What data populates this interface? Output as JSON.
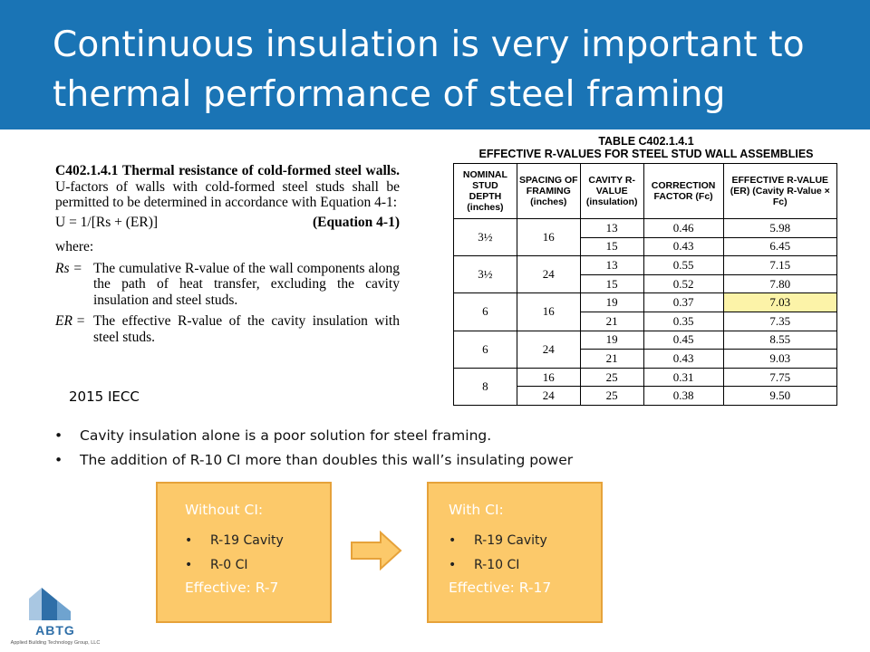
{
  "title": "Continuous insulation is very important to thermal performance of steel framing",
  "code_section": {
    "number": "C402.1.4.1",
    "heading": "Thermal resistance of cold-formed steel walls.",
    "intro": "U-factors of walls with cold-formed steel studs shall be permitted to be determined in accordance with Equation 4-1:",
    "equation": "U = 1/[Rs + (ER)]",
    "equation_label": "(Equation 4-1)",
    "where_label": "where:",
    "definitions": [
      {
        "symbol": "Rs =",
        "text": "The cumulative R-value of the wall components along the path of heat transfer, excluding the cavity insulation and steel studs."
      },
      {
        "symbol": "ER =",
        "text": "The effective R-value of the cavity insulation with steel studs."
      }
    ]
  },
  "source_label": "2015 IECC",
  "table": {
    "title_line1": "TABLE C402.1.4.1",
    "title_line2": "EFFECTIVE R-VALUES FOR STEEL STUD WALL ASSEMBLIES",
    "headers": [
      "NOMINAL STUD DEPTH (inches)",
      "SPACING OF FRAMING (inches)",
      "CAVITY R-VALUE (insulation)",
      "CORRECTION FACTOR (Fc)",
      "EFFECTIVE R-VALUE (ER) (Cavity R-Value × Fc)"
    ],
    "groups": [
      {
        "depth": "3½",
        "spacing": "16",
        "rows": [
          [
            "13",
            "0.46",
            "5.98"
          ],
          [
            "15",
            "0.43",
            "6.45"
          ]
        ]
      },
      {
        "depth": "3½",
        "spacing": "24",
        "rows": [
          [
            "13",
            "0.55",
            "7.15"
          ],
          [
            "15",
            "0.52",
            "7.80"
          ]
        ]
      },
      {
        "depth": "6",
        "spacing": "16",
        "rows": [
          [
            "19",
            "0.37",
            "7.03"
          ],
          [
            "21",
            "0.35",
            "7.35"
          ]
        ]
      },
      {
        "depth": "6",
        "spacing": "24",
        "rows": [
          [
            "19",
            "0.45",
            "8.55"
          ],
          [
            "21",
            "0.43",
            "9.03"
          ]
        ]
      },
      {
        "depth": "8",
        "rows": [
          [
            "16",
            "25",
            "0.31",
            "7.75"
          ],
          [
            "24",
            "25",
            "0.38",
            "9.50"
          ]
        ]
      }
    ],
    "highlight_color": "#fcf3a8"
  },
  "bullets": [
    "Cavity insulation alone is a poor solution for steel framing.",
    "The addition of R-10 CI more than doubles this wall’s insulating power"
  ],
  "box_without": {
    "header": "Without CI:",
    "items": [
      "R-19 Cavity",
      "R-0 CI"
    ],
    "effective": "Effective: R-7"
  },
  "box_with": {
    "header": "With CI:",
    "items": [
      "R-19 Cavity",
      "R-10 CI"
    ],
    "effective": "Effective: R-17"
  },
  "logo": {
    "name": "ABTG",
    "tagline": "Applied Building Technology Group, LLC"
  },
  "colors": {
    "title_bar": "#1a74b5",
    "box_fill": "#fcc96a",
    "box_border": "#e6a23a",
    "logo_blue": "#2f6fa8"
  }
}
